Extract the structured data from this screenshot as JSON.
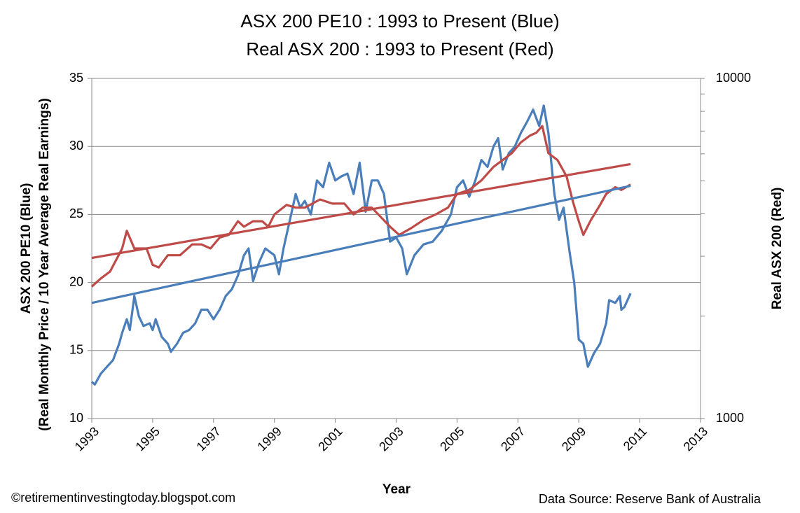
{
  "chart_data": {
    "type": "line",
    "title": "ASX 200 PE10 : 1993 to Present (Blue)",
    "subtitle": "Real ASX 200 : 1993 to Present (Red)",
    "x_label": "Year",
    "y_label": "ASX 200 PE10 (Blue)",
    "y_label_2": "(Real Monthly Price / 10 Year Average Real Earnings)",
    "y2_label": "Real  ASX 200 (Red)",
    "credit": "©retirementinvestingtoday.blogspot.com",
    "source": "Data Source: Reserve  Bank of Australia",
    "xlim": [
      1993,
      2013
    ],
    "xticks": [
      1993,
      1995,
      1997,
      1999,
      2001,
      2003,
      2005,
      2007,
      2009,
      2011,
      2013
    ],
    "ylim": [
      10,
      35
    ],
    "yticks": [
      10,
      15,
      20,
      25,
      30,
      35
    ],
    "y2lim": [
      1000,
      10000
    ],
    "y2ticks": [
      1000,
      10000
    ],
    "y2scale": "log",
    "grid": true,
    "series": [
      {
        "color": "#4a7ebb",
        "axis": "y",
        "x": [
          1993.0,
          1993.1,
          1993.3,
          1993.5,
          1993.7,
          1993.9,
          1994.0,
          1994.15,
          1994.25,
          1994.4,
          1994.55,
          1994.7,
          1994.9,
          1995.0,
          1995.1,
          1995.3,
          1995.5,
          1995.6,
          1995.8,
          1996.0,
          1996.2,
          1996.4,
          1996.6,
          1996.8,
          1997.0,
          1997.2,
          1997.4,
          1997.6,
          1997.8,
          1998.0,
          1998.15,
          1998.3,
          1998.5,
          1998.7,
          1999.0,
          1999.15,
          1999.3,
          1999.5,
          1999.7,
          1999.85,
          2000.0,
          2000.2,
          2000.4,
          2000.6,
          2000.8,
          2001.0,
          2001.2,
          2001.4,
          2001.6,
          2001.8,
          2002.0,
          2002.2,
          2002.4,
          2002.6,
          2002.8,
          2003.0,
          2003.2,
          2003.35,
          2003.6,
          2003.9,
          2004.2,
          2004.5,
          2004.8,
          2005.0,
          2005.2,
          2005.4,
          2005.6,
          2005.8,
          2006.0,
          2006.2,
          2006.35,
          2006.5,
          2006.7,
          2006.9,
          2007.1,
          2007.3,
          2007.5,
          2007.7,
          2007.85,
          2008.0,
          2008.2,
          2008.35,
          2008.5,
          2008.7,
          2008.85,
          2009.0,
          2009.15,
          2009.3,
          2009.5,
          2009.7,
          2009.9,
          2010.0,
          2010.2,
          2010.35,
          2010.4,
          2010.5,
          2010.7
        ],
        "values": [
          12.7,
          12.5,
          13.3,
          13.8,
          14.3,
          15.5,
          16.3,
          17.3,
          16.5,
          19.0,
          17.5,
          16.8,
          17.0,
          16.5,
          17.3,
          16.0,
          15.5,
          14.9,
          15.5,
          16.3,
          16.5,
          17.0,
          18.0,
          18.0,
          17.3,
          18.0,
          19.0,
          19.5,
          20.5,
          22.0,
          22.5,
          20.1,
          21.5,
          22.5,
          22.0,
          20.6,
          22.5,
          24.5,
          26.5,
          25.5,
          26.0,
          25.0,
          27.5,
          27.0,
          28.8,
          27.5,
          27.8,
          28.0,
          26.5,
          28.8,
          25.2,
          27.5,
          27.5,
          26.5,
          23.0,
          23.3,
          22.5,
          20.6,
          22.0,
          22.8,
          23.0,
          23.8,
          25.0,
          27.0,
          27.5,
          26.3,
          27.5,
          29.0,
          28.5,
          30.0,
          30.6,
          28.3,
          29.5,
          30.0,
          31.0,
          31.8,
          32.7,
          31.5,
          33.0,
          31.0,
          26.5,
          24.6,
          25.5,
          22.2,
          20.0,
          15.8,
          15.5,
          13.8,
          14.8,
          15.5,
          17.0,
          18.7,
          18.5,
          19.0,
          18.0,
          18.2,
          19.2
        ]
      },
      {
        "color": "#be4b48",
        "axis": "y2",
        "x": [
          1993.0,
          1993.3,
          1993.6,
          1994.0,
          1994.15,
          1994.4,
          1994.8,
          1995.0,
          1995.2,
          1995.5,
          1995.9,
          1996.3,
          1996.6,
          1996.9,
          1997.2,
          1997.5,
          1997.8,
          1998.0,
          1998.3,
          1998.6,
          1998.8,
          1999.0,
          1999.4,
          1999.7,
          2000.0,
          2000.5,
          2000.9,
          2001.3,
          2001.6,
          2001.9,
          2002.2,
          2002.5,
          2002.8,
          2003.1,
          2003.5,
          2003.9,
          2004.3,
          2004.7,
          2005.0,
          2005.4,
          2005.8,
          2006.2,
          2006.5,
          2006.8,
          2007.1,
          2007.4,
          2007.6,
          2007.8,
          2008.0,
          2008.3,
          2008.6,
          2008.8,
          2009.0,
          2009.15,
          2009.4,
          2009.7,
          2009.9,
          2010.2,
          2010.4,
          2010.7
        ],
        "values": [
          2443,
          2582,
          2704,
          3162,
          3565,
          3162,
          3162,
          2831,
          2780,
          3020,
          3020,
          3251,
          3251,
          3162,
          3404,
          3467,
          3802,
          3664,
          3802,
          3802,
          3664,
          3981,
          4246,
          4169,
          4169,
          4406,
          4285,
          4285,
          3981,
          4169,
          4169,
          3908,
          3664,
          3467,
          3631,
          3837,
          3981,
          4169,
          4571,
          4699,
          5012,
          5495,
          5754,
          6026,
          6486,
          6792,
          6918,
          7244,
          6026,
          5754,
          5152,
          4365,
          3802,
          3467,
          3837,
          4246,
          4571,
          4786,
          4699,
          4875
        ]
      },
      {
        "color": "#4a7ebb",
        "axis": "y",
        "x": [
          1993,
          2010.7
        ],
        "values": [
          18.5,
          27.1
        ]
      },
      {
        "color": "#be4b48",
        "axis": "y2",
        "x": [
          1993,
          2010.7
        ],
        "values": [
          2965,
          5598
        ]
      }
    ]
  }
}
